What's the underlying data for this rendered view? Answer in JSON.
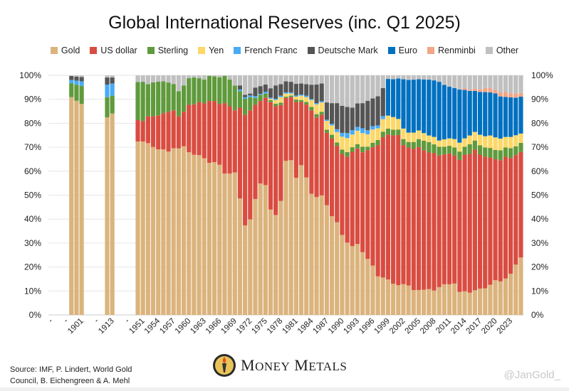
{
  "chart_data": {
    "type": "bar",
    "stacked": true,
    "title": "Global International Reserves (inc. Q1 2025)",
    "ylim": [
      0,
      100
    ],
    "yticks": [
      "0%",
      "10%",
      "20%",
      "30%",
      "40%",
      "50%",
      "60%",
      "70%",
      "80%",
      "90%",
      "100%"
    ],
    "y_axes": "left-and-right",
    "grid": true,
    "legend_position": "top",
    "xtick_labels": [
      "-",
      "-",
      "1901",
      "-",
      "1913",
      "-",
      "1951",
      "1954",
      "1957",
      "1960",
      "1963",
      "1966",
      "1969",
      "1972",
      "1975",
      "1978",
      "1981",
      "1984",
      "1987",
      "1990",
      "1993",
      "1996",
      "1999",
      "2002",
      "2005",
      "2008",
      "2011",
      "2014",
      "2017",
      "2020",
      "2023"
    ],
    "series": [
      {
        "name": "Gold",
        "color": "#dbb37c"
      },
      {
        "name": "US dollar",
        "color": "#d94c41"
      },
      {
        "name": "Sterling",
        "color": "#5f9a3c"
      },
      {
        "name": "Yen",
        "color": "#fdd868"
      },
      {
        "name": "French Franc",
        "color": "#4aabf5"
      },
      {
        "name": "Deutsche Mark",
        "color": "#555555"
      },
      {
        "name": "Euro",
        "color": "#0070c0"
      },
      {
        "name": "Renminbi",
        "color": "#f2a587"
      },
      {
        "name": "Other",
        "color": "#c0c0c0"
      }
    ],
    "bars": [
      {
        "year": 1899,
        "values": [
          90.9,
          0,
          5.8,
          0,
          1.4,
          1.6,
          0,
          0,
          0.3
        ]
      },
      {
        "year": 1900,
        "values": [
          89.4,
          0,
          6.7,
          0,
          1.7,
          1.7,
          0,
          0,
          0.5
        ]
      },
      {
        "year": 1901,
        "values": [
          88.1,
          0,
          7.5,
          0,
          1.9,
          1.8,
          0,
          0,
          0.7
        ]
      },
      {
        "year": 1912,
        "values": [
          82.5,
          0,
          8.4,
          0,
          5.2,
          3.0,
          0,
          0,
          0.9
        ]
      },
      {
        "year": 1913,
        "values": [
          84.1,
          0,
          7.5,
          0,
          5.0,
          2.5,
          0,
          0,
          0.9
        ]
      },
      {
        "year": 1950,
        "values": [
          72.4,
          8.9,
          15.9,
          0,
          0,
          0,
          0,
          0,
          2.8
        ]
      },
      {
        "year": 1951,
        "values": [
          72.4,
          8.5,
          16.4,
          0,
          0,
          0,
          0,
          0,
          2.7
        ]
      },
      {
        "year": 1952,
        "values": [
          71.7,
          11.2,
          13.4,
          0,
          0,
          0,
          0,
          0,
          3.7
        ]
      },
      {
        "year": 1953,
        "values": [
          70.1,
          12.8,
          14.2,
          0,
          0,
          0,
          0,
          0,
          2.9
        ]
      },
      {
        "year": 1954,
        "values": [
          69.1,
          14.2,
          14.1,
          0,
          0,
          0,
          0,
          0,
          2.6
        ]
      },
      {
        "year": 1955,
        "values": [
          69.1,
          15.1,
          13.3,
          0,
          0,
          0,
          0,
          0,
          2.5
        ]
      },
      {
        "year": 1956,
        "values": [
          68.2,
          16.6,
          12.2,
          0,
          0,
          0,
          0,
          0,
          3.0
        ]
      },
      {
        "year": 1957,
        "values": [
          69.6,
          15.8,
          11.0,
          0,
          0,
          0,
          0,
          0,
          3.6
        ]
      },
      {
        "year": 1958,
        "values": [
          69.5,
          13.4,
          10.5,
          0,
          0,
          0,
          0,
          0,
          6.6
        ]
      },
      {
        "year": 1959,
        "values": [
          70.4,
          14.4,
          11.0,
          0,
          0,
          0,
          0,
          0,
          4.2
        ]
      },
      {
        "year": 1960,
        "values": [
          67.9,
          19.8,
          11.1,
          0,
          0,
          0,
          0,
          0,
          1.2
        ]
      },
      {
        "year": 1961,
        "values": [
          66.9,
          21.0,
          11.2,
          0,
          0,
          0,
          0,
          0,
          0.9
        ]
      },
      {
        "year": 1962,
        "values": [
          66.7,
          22.2,
          9.9,
          0,
          0,
          0,
          0,
          0,
          1.2
        ]
      },
      {
        "year": 1963,
        "values": [
          65.4,
          22.9,
          10.0,
          0,
          0,
          0,
          0,
          0,
          1.7
        ]
      },
      {
        "year": 1964,
        "values": [
          63.5,
          25.8,
          10.5,
          0,
          0,
          0,
          0,
          0,
          0.2
        ]
      },
      {
        "year": 1965,
        "values": [
          63.8,
          25.5,
          10.3,
          0,
          0,
          0,
          0,
          0,
          0.4
        ]
      },
      {
        "year": 1966,
        "values": [
          62.7,
          25.3,
          11.2,
          0,
          0,
          0,
          0,
          0,
          0.8
        ]
      },
      {
        "year": 1967,
        "values": [
          59.0,
          29.4,
          11.4,
          0,
          0,
          0,
          0,
          0,
          0.2
        ]
      },
      {
        "year": 1968,
        "values": [
          59.0,
          28.1,
          11.2,
          0,
          0,
          0,
          0,
          0,
          1.7
        ]
      },
      {
        "year": 1969,
        "values": [
          59.5,
          25.9,
          10.3,
          0,
          0,
          0,
          0,
          0,
          4.3
        ]
      },
      {
        "year": 1970,
        "values": [
          48.6,
          37.9,
          6.9,
          0,
          0.7,
          1.7,
          0,
          0,
          4.2
        ]
      },
      {
        "year": 1971,
        "values": [
          37.4,
          46.1,
          6.7,
          0,
          0.7,
          1.0,
          0,
          0,
          8.1
        ]
      },
      {
        "year": 1972,
        "values": [
          39.9,
          45.5,
          5.5,
          0,
          0.7,
          0.8,
          0,
          0,
          7.6
        ]
      },
      {
        "year": 1973,
        "values": [
          48.4,
          39.3,
          2.9,
          0,
          0.7,
          3.6,
          0,
          0,
          5.1
        ]
      },
      {
        "year": 1974,
        "values": [
          54.9,
          34.4,
          2.6,
          0,
          0.4,
          3.2,
          0,
          0,
          4.5
        ]
      },
      {
        "year": 1975,
        "values": [
          54.2,
          36.5,
          1.7,
          0,
          0.7,
          3.1,
          0,
          0,
          3.8
        ]
      },
      {
        "year": 1976,
        "values": [
          44.0,
          44.8,
          0.9,
          0.5,
          0.5,
          3.9,
          0,
          0,
          5.4
        ]
      },
      {
        "year": 1977,
        "values": [
          41.7,
          45.4,
          1.1,
          1.5,
          0.5,
          5.6,
          0,
          0,
          4.2
        ]
      },
      {
        "year": 1978,
        "values": [
          47.6,
          40.0,
          1.0,
          2.3,
          0.6,
          4.8,
          0,
          0,
          3.7
        ]
      },
      {
        "year": 1979,
        "values": [
          64.3,
          26.3,
          0.5,
          1.3,
          0.5,
          4.6,
          0,
          0,
          2.5
        ]
      },
      {
        "year": 1980,
        "values": [
          64.6,
          26.3,
          0.7,
          0.8,
          0.5,
          4.4,
          0,
          0,
          2.7
        ]
      },
      {
        "year": 1981,
        "values": [
          57.2,
          31.7,
          1.0,
          1.2,
          0.5,
          4.9,
          0,
          0,
          3.5
        ]
      },
      {
        "year": 1982,
        "values": [
          62.5,
          26.4,
          0.8,
          1.8,
          0.5,
          4.6,
          0,
          0,
          3.4
        ]
      },
      {
        "year": 1983,
        "values": [
          57.4,
          30.4,
          1.1,
          2.0,
          0.6,
          4.8,
          0,
          0,
          3.7
        ]
      },
      {
        "year": 1984,
        "values": [
          50.6,
          34.8,
          1.4,
          2.9,
          0.4,
          6.0,
          0,
          0,
          3.9
        ]
      },
      {
        "year": 1985,
        "values": [
          49.2,
          33.2,
          1.4,
          4.1,
          0.5,
          7.8,
          0,
          0,
          3.8
        ]
      },
      {
        "year": 1986,
        "values": [
          49.9,
          33.7,
          1.2,
          3.9,
          0.5,
          7.4,
          0,
          0,
          3.4
        ]
      },
      {
        "year": 1987,
        "values": [
          45.8,
          30.2,
          1.3,
          3.7,
          0.5,
          7.2,
          0,
          0,
          11.3
        ]
      },
      {
        "year": 1988,
        "values": [
          41.2,
          32.4,
          1.6,
          3.9,
          0.7,
          8.6,
          0,
          0,
          11.6
        ]
      },
      {
        "year": 1989,
        "values": [
          38.7,
          31.9,
          1.4,
          4.3,
          1.2,
          10.9,
          0,
          0,
          11.6
        ]
      },
      {
        "year": 1990,
        "values": [
          33.4,
          33.8,
          1.8,
          5.4,
          1.6,
          11.3,
          0,
          0,
          12.7
        ]
      },
      {
        "year": 1991,
        "values": [
          30.2,
          35.8,
          2.0,
          5.8,
          2.1,
          10.9,
          0,
          0,
          13.2
        ]
      },
      {
        "year": 1992,
        "values": [
          28.7,
          39.4,
          1.9,
          5.3,
          1.8,
          9.4,
          0,
          0,
          13.5
        ]
      },
      {
        "year": 1993,
        "values": [
          29.6,
          39.9,
          1.8,
          5.6,
          1.6,
          9.8,
          0,
          0,
          11.7
        ]
      },
      {
        "year": 1994,
        "values": [
          26.2,
          41.7,
          2.3,
          5.7,
          2.0,
          10.5,
          0,
          0,
          11.6
        ]
      },
      {
        "year": 1995,
        "values": [
          23.4,
          45.4,
          1.4,
          5.2,
          1.7,
          12.3,
          0,
          0,
          10.6
        ]
      },
      {
        "year": 1996,
        "values": [
          20.6,
          49.4,
          1.9,
          5.5,
          1.4,
          11.6,
          0,
          0,
          9.6
        ]
      },
      {
        "year": 1997,
        "values": [
          16.1,
          54.8,
          2.1,
          4.9,
          1.2,
          12.2,
          0,
          0,
          8.7
        ]
      },
      {
        "year": 1998,
        "values": [
          15.6,
          58.6,
          2.3,
          5.2,
          1.3,
          11.7,
          0,
          0,
          5.3
        ]
      },
      {
        "year": 1999,
        "values": [
          14.8,
          60.5,
          2.5,
          5.4,
          0,
          0,
          15.3,
          0,
          1.5
        ]
      },
      {
        "year": 2000,
        "values": [
          13.0,
          61.9,
          2.4,
          5.3,
          0,
          0,
          15.8,
          0,
          1.6
        ]
      },
      {
        "year": 2001,
        "values": [
          12.4,
          62.7,
          2.3,
          4.4,
          0,
          0,
          16.9,
          0,
          1.3
        ]
      },
      {
        "year": 2002,
        "values": [
          12.9,
          58.0,
          2.5,
          4.4,
          0,
          0,
          20.6,
          0,
          1.6
        ]
      },
      {
        "year": 2003,
        "values": [
          12.3,
          57.6,
          2.3,
          3.9,
          0,
          0,
          22.0,
          0,
          1.9
        ]
      },
      {
        "year": 2004,
        "values": [
          10.4,
          58.9,
          2.9,
          3.9,
          0,
          0,
          22.1,
          0,
          1.8
        ]
      },
      {
        "year": 2005,
        "values": [
          10.4,
          59.7,
          3.3,
          3.6,
          0,
          0,
          21.4,
          0,
          1.6
        ]
      },
      {
        "year": 2006,
        "values": [
          10.5,
          58.3,
          3.9,
          3.2,
          0,
          0,
          22.4,
          0,
          1.7
        ]
      },
      {
        "year": 2007,
        "values": [
          10.8,
          57.0,
          4.3,
          2.8,
          0,
          0,
          23.3,
          0,
          1.8
        ]
      },
      {
        "year": 2008,
        "values": [
          10.2,
          57.3,
          3.7,
          3.1,
          0,
          0,
          23.6,
          0,
          2.1
        ]
      },
      {
        "year": 2009,
        "values": [
          11.6,
          54.9,
          3.7,
          2.6,
          0,
          0,
          24.5,
          0,
          2.7
        ]
      },
      {
        "year": 2010,
        "values": [
          12.8,
          54.2,
          3.2,
          3.1,
          0,
          0,
          22.7,
          0,
          4.0
        ]
      },
      {
        "year": 2011,
        "values": [
          12.8,
          54.6,
          3.2,
          3.1,
          0,
          0,
          21.6,
          0,
          4.7
        ]
      },
      {
        "year": 2012,
        "values": [
          13.1,
          53.4,
          3.4,
          3.5,
          0,
          0,
          21.3,
          0,
          5.3
        ]
      },
      {
        "year": 2013,
        "values": [
          9.6,
          55.1,
          3.5,
          3.7,
          0,
          0,
          22.2,
          0,
          5.9
        ]
      },
      {
        "year": 2014,
        "values": [
          9.9,
          57.0,
          3.3,
          3.5,
          0,
          0,
          20.2,
          0.8,
          5.3
        ]
      },
      {
        "year": 2015,
        "values": [
          9.3,
          57.9,
          4.1,
          3.6,
          0,
          0,
          18.6,
          0.4,
          6.1
        ]
      },
      {
        "year": 2016,
        "values": [
          10.3,
          58.7,
          3.8,
          3.6,
          0,
          0,
          17.1,
          0.9,
          5.6
        ]
      },
      {
        "year": 2017,
        "values": [
          11.0,
          55.9,
          3.9,
          4.4,
          0,
          0,
          17.9,
          1.0,
          5.9
        ]
      },
      {
        "year": 2018,
        "values": [
          11.1,
          54.9,
          3.9,
          4.7,
          0,
          0,
          18.4,
          1.7,
          5.3
        ]
      },
      {
        "year": 2019,
        "values": [
          12.6,
          53.1,
          4.0,
          5.2,
          0,
          0,
          18.0,
          1.8,
          5.3
        ]
      },
      {
        "year": 2020,
        "values": [
          14.5,
          50.5,
          3.9,
          5.2,
          0,
          0,
          18.4,
          1.4,
          6.1
        ]
      },
      {
        "year": 2021,
        "values": [
          14.0,
          50.6,
          4.1,
          4.9,
          0,
          0,
          17.6,
          1.8,
          7.0
        ]
      },
      {
        "year": 2022,
        "values": [
          15.2,
          50.8,
          3.9,
          4.4,
          0,
          0,
          16.7,
          2.0,
          7.0
        ]
      },
      {
        "year": 2023,
        "values": [
          17.2,
          48.3,
          4.1,
          4.7,
          0,
          0,
          16.5,
          1.7,
          7.5
        ]
      },
      {
        "year": 2024,
        "values": [
          21.0,
          45.7,
          3.7,
          4.6,
          0,
          0,
          15.7,
          1.7,
          7.6
        ]
      },
      {
        "year": 2025,
        "values": [
          24.0,
          44.0,
          3.8,
          3.9,
          0,
          0,
          15.4,
          1.5,
          7.4
        ]
      }
    ]
  },
  "footer": {
    "source_line1": "Source: IMF, P. Lindert, World Gold",
    "source_line2": "Council, B. Eichengreen & A. Mehl",
    "logo_text": "Money Metals",
    "handle": "@JanGold_"
  }
}
